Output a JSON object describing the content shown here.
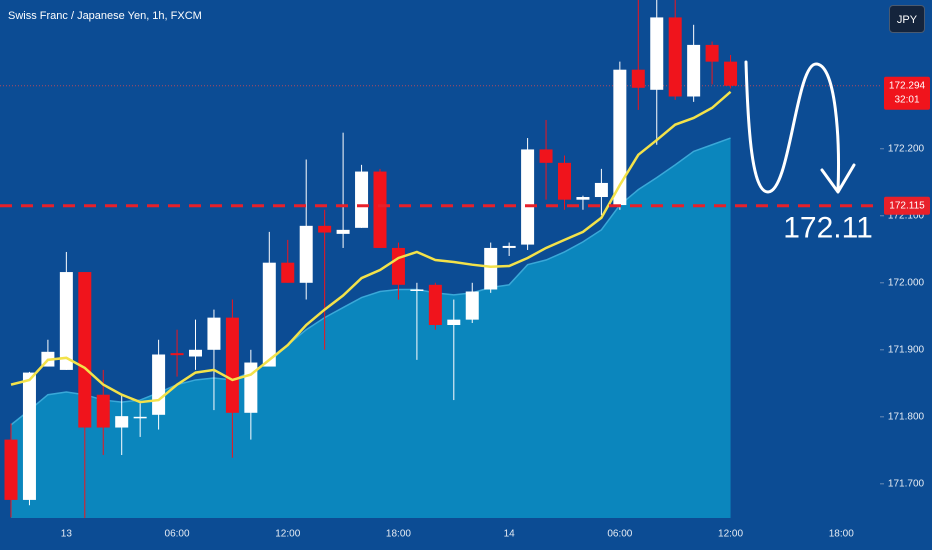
{
  "header": {
    "title": "Swiss Franc / Japanese Yen, 1h, FXCM",
    "currency_button": "JPY"
  },
  "chart_data": {
    "type": "candlestick",
    "categories": [
      null,
      null,
      null,
      "13",
      null,
      null,
      null,
      null,
      null,
      "06:00",
      null,
      null,
      null,
      null,
      null,
      "12:00",
      null,
      null,
      null,
      null,
      null,
      "18:00",
      null,
      null,
      null,
      null,
      null,
      "14",
      null,
      null,
      null,
      null,
      null,
      "06:00",
      null,
      null,
      null,
      null,
      null,
      "12:00",
      null,
      null,
      null,
      null,
      null,
      "18:00"
    ],
    "open": [
      171.766,
      171.676,
      171.875,
      171.87,
      172.016,
      171.833,
      171.784,
      171.8,
      171.803,
      171.895,
      171.89,
      171.9,
      171.948,
      171.806,
      171.875,
      172.03,
      172.0,
      172.085,
      172.073,
      172.082,
      172.166,
      172.052,
      171.99,
      171.997,
      171.937,
      171.945,
      171.99,
      172.052,
      172.057,
      172.199,
      172.179,
      172.124,
      172.128,
      172.116,
      172.318,
      172.288,
      172.396,
      172.278,
      172.355,
      172.33,
      null,
      null,
      null,
      null,
      null,
      null
    ],
    "high": [
      171.79,
      171.867,
      171.915,
      172.046,
      172.016,
      171.87,
      171.833,
      171.82,
      171.915,
      171.93,
      171.945,
      171.96,
      171.975,
      171.9,
      172.076,
      172.064,
      172.184,
      172.109,
      172.224,
      172.176,
      172.17,
      172.06,
      172.0,
      172.0,
      171.975,
      172.0,
      172.06,
      172.06,
      172.216,
      172.243,
      172.19,
      172.13,
      172.17,
      172.33,
      172.422,
      172.422,
      172.422,
      172.385,
      172.36,
      172.34,
      null,
      null,
      null,
      null,
      null,
      null
    ],
    "low": [
      171.65,
      171.668,
      171.875,
      171.87,
      171.649,
      171.743,
      171.743,
      171.77,
      171.781,
      171.86,
      171.87,
      171.81,
      171.739,
      171.766,
      171.875,
      172.0,
      171.975,
      171.9,
      172.052,
      172.082,
      172.052,
      171.975,
      171.885,
      171.93,
      171.825,
      171.94,
      171.985,
      172.04,
      172.049,
      172.124,
      172.109,
      172.109,
      172.101,
      172.109,
      172.258,
      172.206,
      172.273,
      172.27,
      172.296,
      172.29,
      null,
      null,
      null,
      null,
      null,
      null
    ],
    "close": [
      171.676,
      171.866,
      171.897,
      172.016,
      171.784,
      171.784,
      171.801,
      171.8,
      171.893,
      171.892,
      171.9,
      171.948,
      171.806,
      171.881,
      172.03,
      172.0,
      172.085,
      172.075,
      172.079,
      172.166,
      172.052,
      171.997,
      171.99,
      171.937,
      171.945,
      171.987,
      172.052,
      172.055,
      172.199,
      172.179,
      172.124,
      172.128,
      172.149,
      172.318,
      172.291,
      172.396,
      172.278,
      172.355,
      172.33,
      172.294,
      null,
      null,
      null,
      null,
      null,
      null
    ],
    "up_color": "#ffffff",
    "down_color": "#f0141c",
    "ema": {
      "color": "#f3e24a",
      "values": [
        171.848,
        171.855,
        171.885,
        171.888,
        171.873,
        171.848,
        171.833,
        171.822,
        171.825,
        171.848,
        171.866,
        171.87,
        171.855,
        171.863,
        171.885,
        171.907,
        171.937,
        171.96,
        171.981,
        172.007,
        172.019,
        172.037,
        172.046,
        172.034,
        172.031,
        172.027,
        172.024,
        172.025,
        172.037,
        172.052,
        172.064,
        172.076,
        172.097,
        172.146,
        172.191,
        172.213,
        172.236,
        172.246,
        172.261,
        172.285,
        null,
        null,
        null,
        null,
        null,
        null
      ]
    },
    "area": {
      "color": "#0b86bd",
      "values": [
        171.788,
        171.81,
        171.833,
        171.837,
        171.833,
        171.825,
        171.822,
        171.825,
        171.836,
        171.848,
        171.855,
        171.858,
        171.855,
        171.867,
        171.882,
        171.907,
        171.93,
        171.948,
        171.963,
        171.978,
        171.987,
        171.99,
        171.99,
        171.985,
        171.982,
        171.985,
        171.993,
        171.997,
        172.027,
        172.034,
        172.046,
        172.061,
        172.079,
        172.116,
        172.139,
        172.157,
        172.176,
        172.196,
        172.206,
        172.216,
        null,
        null,
        null,
        null,
        null,
        null
      ]
    },
    "ylim": [
      171.649,
      172.422
    ],
    "yticks": [
      {
        "value": 171.7,
        "label": "171.700"
      },
      {
        "value": 171.8,
        "label": "171.800"
      },
      {
        "value": 171.9,
        "label": "171.900"
      },
      {
        "value": 172.0,
        "label": "172.000"
      },
      {
        "value": 172.1,
        "label": "172.100"
      },
      {
        "value": 172.2,
        "label": "172.200"
      }
    ],
    "level_line": {
      "value": 172.115,
      "label": "172.115",
      "color": "#e8202a"
    },
    "last_price": {
      "value": 172.294,
      "label": "172.294",
      "countdown": "32:01"
    },
    "annotation": "172.11"
  }
}
